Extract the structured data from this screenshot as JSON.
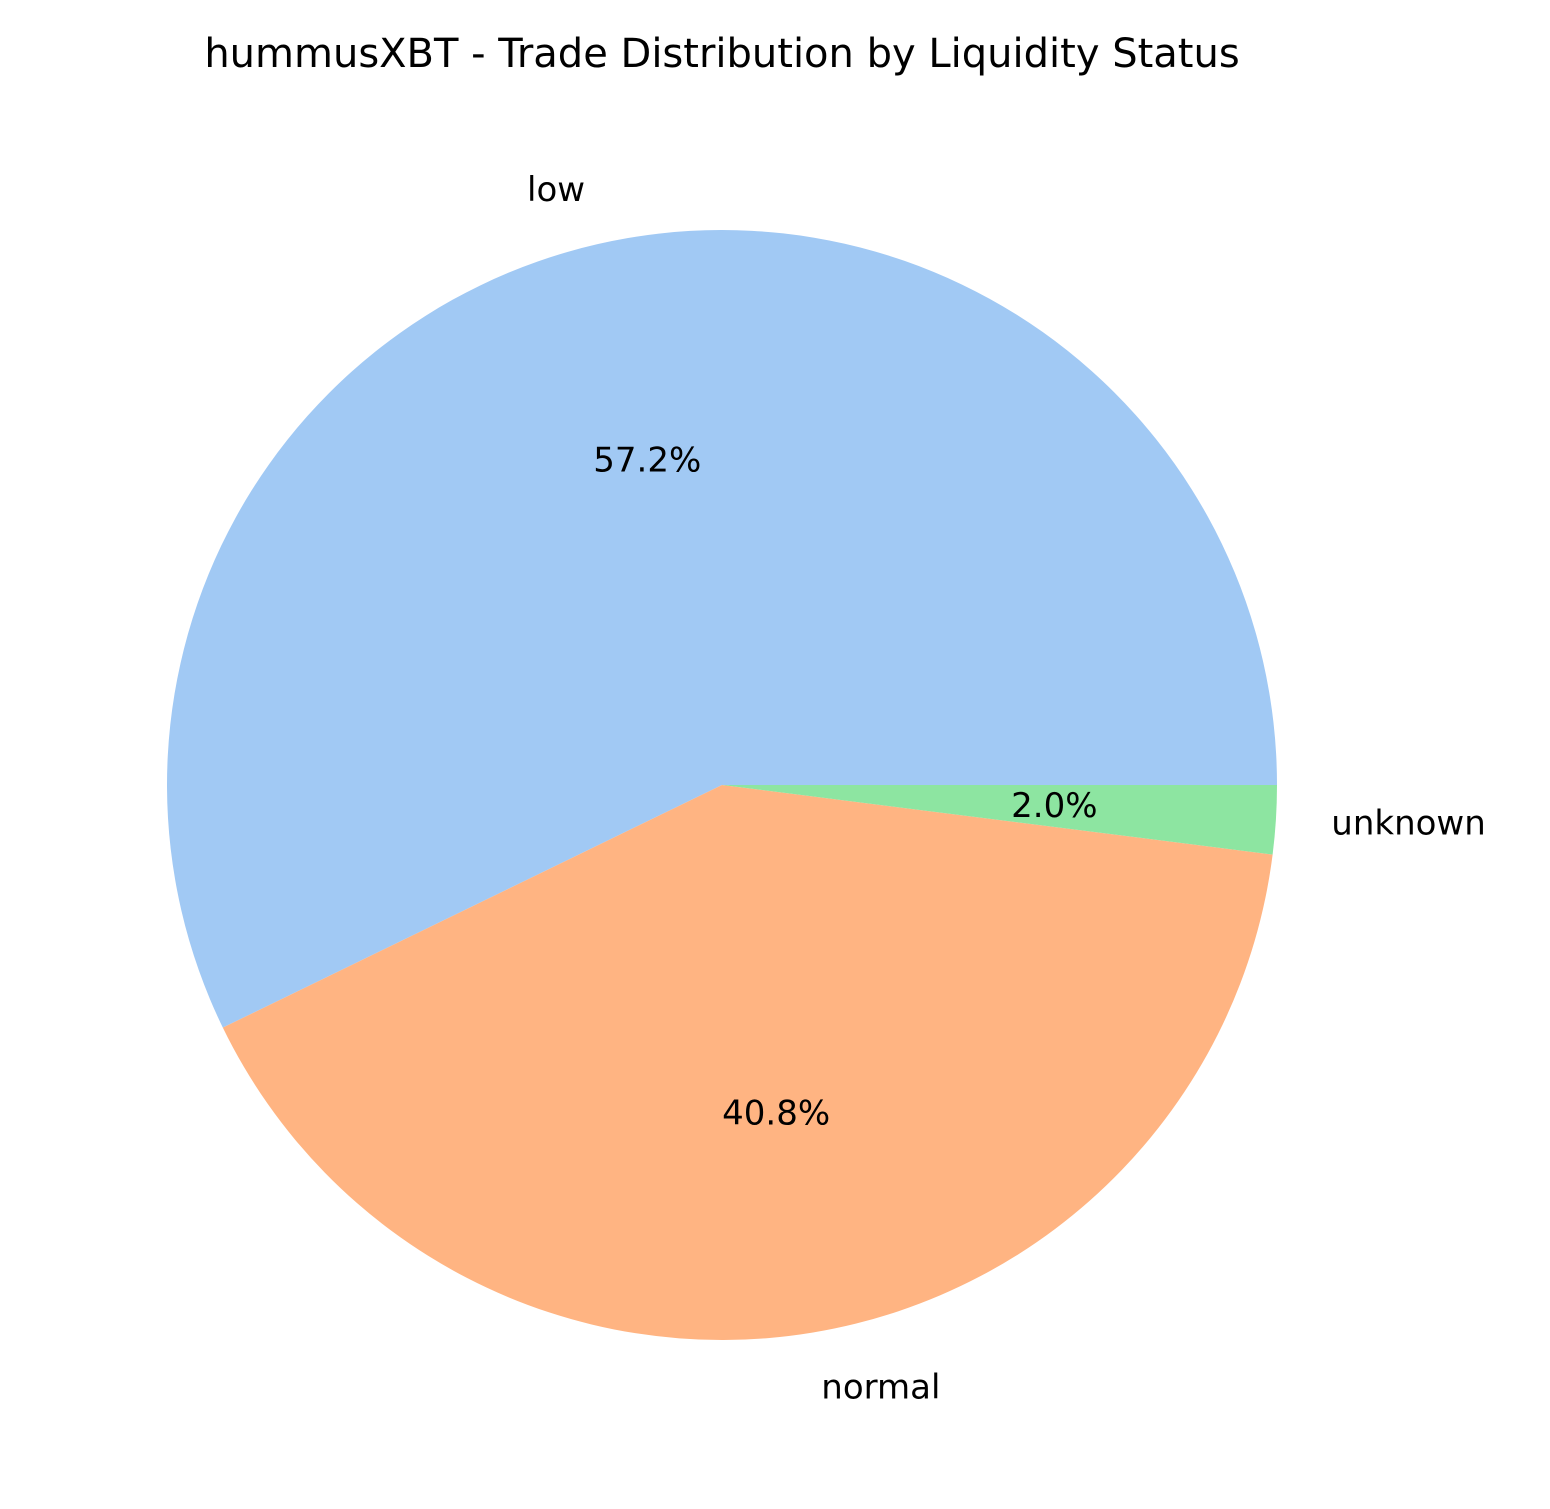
{
  "chart_data": {
    "type": "pie",
    "title": "hummusXBT - Trade Distribution by Liquidity Status",
    "slices": [
      {
        "label": "low",
        "value": 57.2,
        "pct_label": "57.2%",
        "color": "#a1c9f4"
      },
      {
        "label": "unknown",
        "value": 2.0,
        "pct_label": "2.0%",
        "color": "#8de5a1"
      },
      {
        "label": "normal",
        "value": 40.8,
        "pct_label": "40.8%",
        "color": "#ffb482"
      }
    ]
  }
}
